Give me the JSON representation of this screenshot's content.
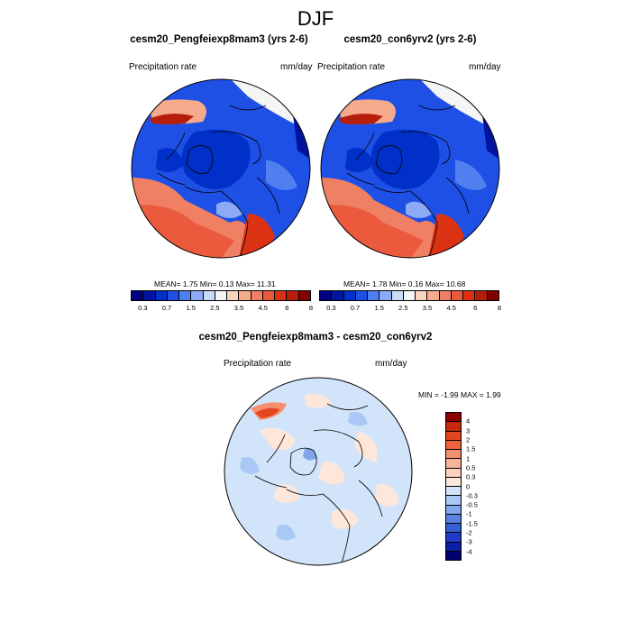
{
  "title": "DJF",
  "panels": [
    {
      "name": "cesm20_Pengfeiexp8mam3 (yrs 2-6)",
      "variable": "Precipitation rate",
      "units": "mm/day",
      "stats": "MEAN=    1.75  Min=    0.13  Max=  11.31"
    },
    {
      "name": "cesm20_con6yrv2 (yrs 2-6)",
      "variable": "Precipitation rate",
      "units": "mm/day",
      "stats": "MEAN=    1.78  Min=    0.16  Max=  10.68"
    }
  ],
  "precip_colorbar": {
    "colors": [
      "#000080",
      "#0014A0",
      "#0030C8",
      "#1E50E6",
      "#5080F0",
      "#8CAAF5",
      "#C8DCFA",
      "#F5F5F5",
      "#FAD2BE",
      "#F5AA8C",
      "#F08064",
      "#EB5A3C",
      "#DC3214",
      "#B41E0A",
      "#820000"
    ],
    "labels": [
      "0.3",
      "0.7",
      "1.5",
      "2.5",
      "3.5",
      "4.5",
      "6",
      "8"
    ]
  },
  "diff": {
    "title": "cesm20_Pengfeiexp8mam3 - cesm20_con6yrv2",
    "variable": "Precipitation rate",
    "units": "mm/day",
    "stats": "MIN =  -1.99 MAX =    1.99"
  },
  "diff_colorbar": {
    "colors": [
      "#8C0000",
      "#C8280A",
      "#E6461E",
      "#F0643C",
      "#F5906E",
      "#F8B496",
      "#FAD2BE",
      "#FDE6DA",
      "#D2E4FA",
      "#AAC8F5",
      "#82A5EB",
      "#5A82E1",
      "#3260D7",
      "#1E3CC8",
      "#0A1EAA",
      "#00006E"
    ],
    "labels": [
      "4",
      "3",
      "2",
      "1.5",
      "1",
      "0.5",
      "0.3",
      "0",
      "-0.3",
      "-0.5",
      "-1",
      "-1.5",
      "-2",
      "-3",
      "-4"
    ]
  }
}
